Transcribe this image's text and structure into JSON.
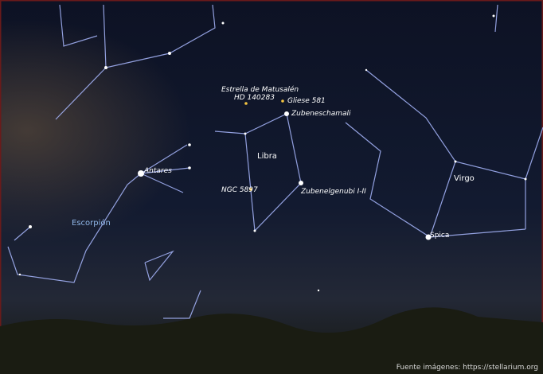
{
  "labels": {
    "estrella": "Estrella de Matusalén",
    "hd": "HD 140283",
    "gliese": "Gliese 581",
    "zubeneschamali": "Zubeneschamali",
    "libra": "Libra",
    "antares": "Antares",
    "ngc": "NGC 5897",
    "zubenelgenubi": "Zubenelgenubi I-II",
    "escorpion": "Escorpión",
    "virgo": "Virgo",
    "spica": "Spica"
  },
  "credit": "Fuente imágenes: https://stellarium.org"
}
